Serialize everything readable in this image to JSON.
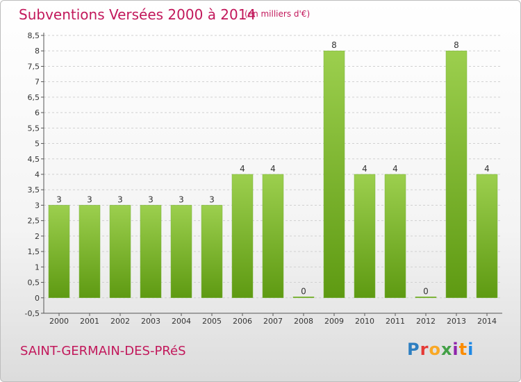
{
  "header": {
    "title": "Subventions Versées 2000 à 2014",
    "unit": "(en milliers d'€)"
  },
  "footer": {
    "commune": "SAINT-GERMAIN-DES-PRéS",
    "logo_letters": [
      "P",
      "r",
      "o",
      "x",
      "i",
      "t",
      "i"
    ]
  },
  "colors": {
    "bar_top": "#9ccf4e",
    "bar_bottom": "#5e9a12",
    "title": "#c2185b"
  },
  "chart_data": {
    "type": "bar",
    "categories": [
      "2000",
      "2001",
      "2002",
      "2003",
      "2004",
      "2005",
      "2006",
      "2007",
      "2008",
      "2009",
      "2010",
      "2011",
      "2012",
      "2013",
      "2014"
    ],
    "values": [
      3,
      3,
      3,
      3,
      3,
      3,
      4,
      4,
      0,
      8,
      4,
      4,
      0,
      8,
      4
    ],
    "data_labels": [
      "3",
      "3",
      "3",
      "3",
      "3",
      "3",
      "4",
      "4",
      "0",
      "8",
      "4",
      "4",
      "0",
      "8",
      "4"
    ],
    "ylim": [
      -0.5,
      8.5
    ],
    "y_ticks": [
      "-0,5",
      "0",
      "0,5",
      "1",
      "1,5",
      "2",
      "2,5",
      "3",
      "3,5",
      "4",
      "4,5",
      "5",
      "5,5",
      "6",
      "6,5",
      "7",
      "7,5",
      "8",
      "8,5"
    ],
    "y_tick_values": [
      -0.5,
      0,
      0.5,
      1,
      1.5,
      2,
      2.5,
      3,
      3.5,
      4,
      4.5,
      5,
      5.5,
      6,
      6.5,
      7,
      7.5,
      8,
      8.5
    ],
    "grid": "horizontal dashed",
    "legend": "none"
  }
}
